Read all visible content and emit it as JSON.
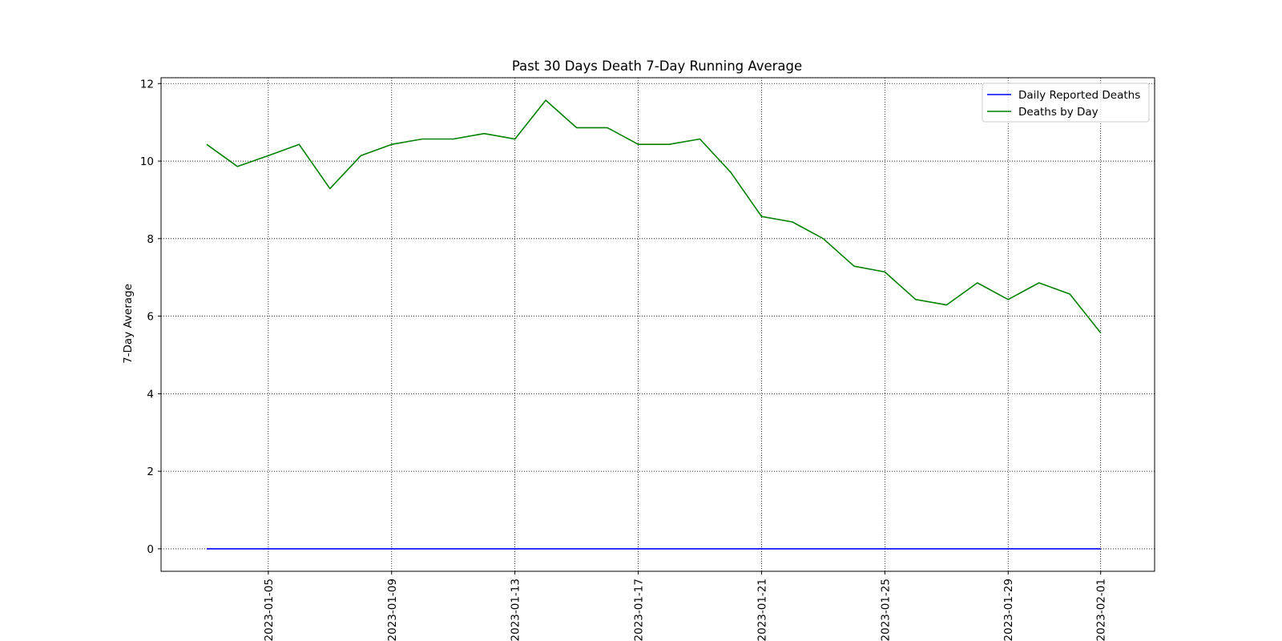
{
  "chart_data": {
    "type": "line",
    "title": "Past 30 Days Death 7-Day Running Average",
    "xlabel": "",
    "ylabel": "7-Day Average",
    "x": [
      "2023-01-03",
      "2023-01-04",
      "2023-01-05",
      "2023-01-06",
      "2023-01-07",
      "2023-01-08",
      "2023-01-09",
      "2023-01-10",
      "2023-01-11",
      "2023-01-12",
      "2023-01-13",
      "2023-01-14",
      "2023-01-15",
      "2023-01-16",
      "2023-01-17",
      "2023-01-18",
      "2023-01-19",
      "2023-01-20",
      "2023-01-21",
      "2023-01-22",
      "2023-01-23",
      "2023-01-24",
      "2023-01-25",
      "2023-01-26",
      "2023-01-27",
      "2023-01-28",
      "2023-01-29",
      "2023-01-30",
      "2023-01-31",
      "2023-02-01"
    ],
    "series": [
      {
        "name": "Daily Reported Deaths",
        "color": "#0000ff",
        "values": [
          0,
          0,
          0,
          0,
          0,
          0,
          0,
          0,
          0,
          0,
          0,
          0,
          0,
          0,
          0,
          0,
          0,
          0,
          0,
          0,
          0,
          0,
          0,
          0,
          0,
          0,
          0,
          0,
          0,
          0
        ]
      },
      {
        "name": "Deaths by Day",
        "color": "#008000",
        "values": [
          10.43,
          9.86,
          10.14,
          10.43,
          9.29,
          10.14,
          10.43,
          10.57,
          10.57,
          10.71,
          10.57,
          11.57,
          10.86,
          10.86,
          10.43,
          10.43,
          10.57,
          9.71,
          8.57,
          8.43,
          8.0,
          7.29,
          7.14,
          6.43,
          6.29,
          6.86,
          6.43,
          6.86,
          6.57,
          5.57
        ]
      }
    ],
    "x_ticks": [
      "2023-01-05",
      "2023-01-09",
      "2023-01-13",
      "2023-01-17",
      "2023-01-21",
      "2023-01-25",
      "2023-01-29",
      "2023-02-01"
    ],
    "y_ticks": [
      0,
      2,
      4,
      6,
      8,
      10,
      12
    ],
    "ylim": [
      -0.58,
      12.15
    ],
    "xlim": [
      "2023-01-01T12:30",
      "2023-02-02T18:00"
    ],
    "grid": true,
    "grid_style": "dotted",
    "legend_position": "top-right"
  }
}
